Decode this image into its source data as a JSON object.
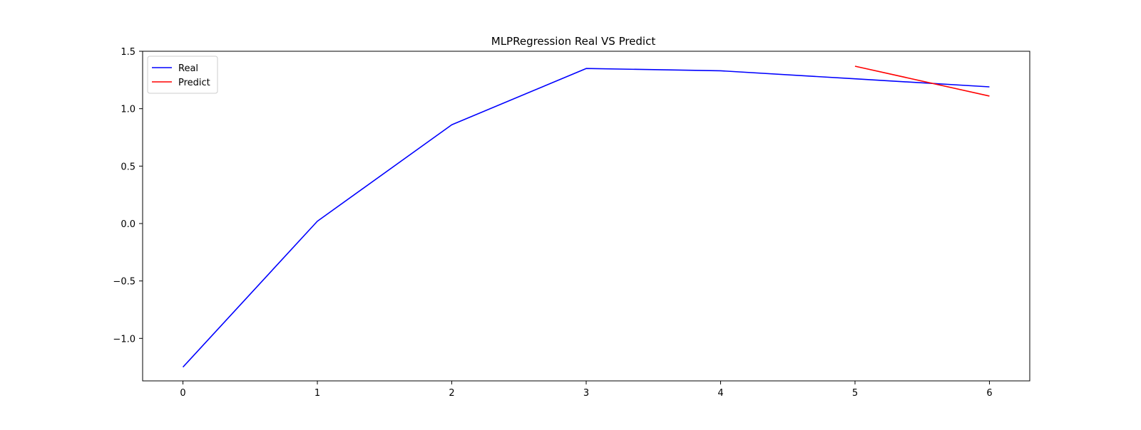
{
  "chart_data": {
    "type": "line",
    "title": "MLPRegression Real VS Predict",
    "xlabel": "",
    "ylabel": "",
    "xlim": [
      -0.3,
      6.3
    ],
    "ylim": [
      -1.37,
      1.5
    ],
    "x_ticks": [
      0,
      1,
      2,
      3,
      4,
      5,
      6
    ],
    "x_tick_labels": [
      "0",
      "1",
      "2",
      "3",
      "4",
      "5",
      "6"
    ],
    "y_ticks": [
      -1.0,
      -0.5,
      0.0,
      0.5,
      1.0,
      1.5
    ],
    "y_tick_labels": [
      "−1.0",
      "−0.5",
      "0.0",
      "0.5",
      "1.0",
      "1.5"
    ],
    "grid": false,
    "legend_position": "top-left",
    "series": [
      {
        "name": "Real",
        "color": "#0000ff",
        "x": [
          0,
          1,
          2,
          3,
          4,
          5,
          6
        ],
        "values": [
          -1.25,
          0.02,
          0.86,
          1.35,
          1.33,
          1.26,
          1.19
        ]
      },
      {
        "name": "Predict",
        "color": "#ff0000",
        "x": [
          5,
          6
        ],
        "values": [
          1.37,
          1.11
        ]
      }
    ]
  }
}
